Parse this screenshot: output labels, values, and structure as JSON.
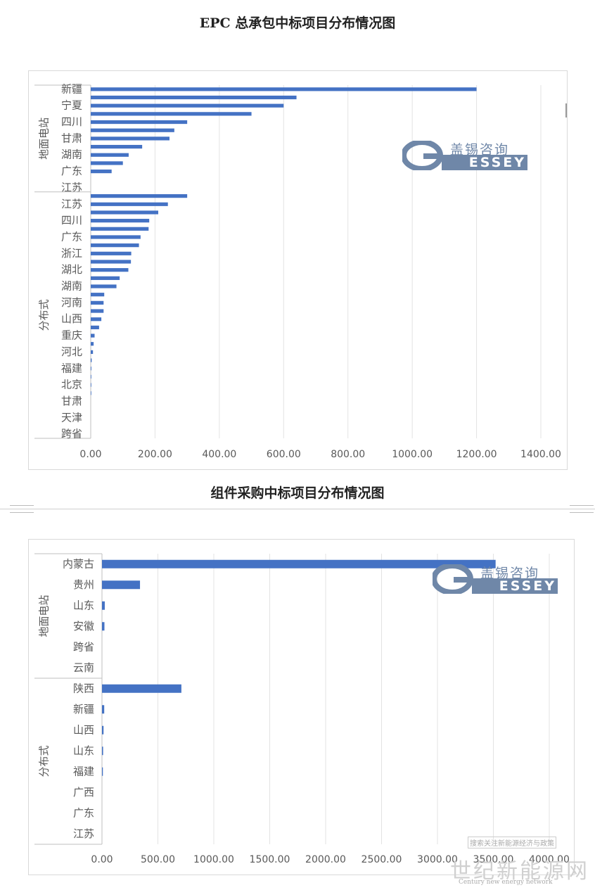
{
  "chart_data": [
    {
      "type": "bar",
      "orientation": "horizontal",
      "title": "EPC 总承包中标项目分布情况图",
      "groups": [
        {
          "name": "地面电站",
          "categories": [
            "新疆",
            "",
            "宁夏",
            "",
            "四川",
            "",
            "甘肃",
            "",
            "湖南",
            "",
            "广东",
            "",
            "江苏"
          ],
          "values": [
            1200,
            640,
            600,
            500,
            300,
            260,
            245,
            160,
            118,
            100,
            65,
            0,
            0
          ]
        },
        {
          "name": "分布式",
          "categories": [
            "",
            "江苏",
            "",
            "四川",
            "",
            "广东",
            "",
            "浙江",
            "",
            "湖北",
            "",
            "湖南",
            "",
            "河南",
            "",
            "山西",
            "",
            "重庆",
            "",
            "河北",
            "",
            "福建",
            "",
            "北京",
            "",
            "甘肃",
            "",
            "天津",
            "",
            "跨省"
          ],
          "values": [
            300,
            240,
            210,
            182,
            180,
            155,
            150,
            126,
            125,
            117,
            90,
            80,
            42,
            40,
            40,
            33,
            26,
            12,
            9,
            7,
            3,
            2,
            1,
            1,
            1,
            0,
            0,
            0,
            0,
            0
          ]
        }
      ],
      "xaxis": {
        "min": 0,
        "max": 1400,
        "ticks": [
          "0.00",
          "200.00",
          "400.00",
          "600.00",
          "800.00",
          "1000.00",
          "1200.00",
          "1400.00"
        ]
      },
      "grid": true,
      "color": "#4472c4"
    },
    {
      "type": "bar",
      "orientation": "horizontal",
      "title": "组件采购中标项目分布情况图",
      "groups": [
        {
          "name": "地面电站",
          "categories": [
            "内蒙古",
            "贵州",
            "山东",
            "安徽",
            "跨省",
            "云南"
          ],
          "values": [
            3520,
            340,
            25,
            22,
            0,
            0
          ]
        },
        {
          "name": "分布式",
          "categories": [
            "陕西",
            "新疆",
            "山西",
            "山东",
            "福建",
            "广西",
            "广东",
            "江苏"
          ],
          "values": [
            710,
            20,
            14,
            10,
            8,
            0,
            0,
            0
          ]
        }
      ],
      "xaxis": {
        "min": 0,
        "max": 4000,
        "ticks": [
          "0.00",
          "500.00",
          "1000.00",
          "1500.00",
          "2000.00",
          "2500.00",
          "3000.00",
          "3500.00",
          "4000.00"
        ]
      },
      "grid": true,
      "color": "#4472c4"
    }
  ],
  "watermark": {
    "cn": "盖锡咨询",
    "en": "ESSEY",
    "g": "G",
    "color": "#6f87a8"
  },
  "footer_watermark": {
    "tag": "搜索关注新能源经济与政策",
    "big": "世纪新能源网",
    "small": "Century new energy network"
  }
}
